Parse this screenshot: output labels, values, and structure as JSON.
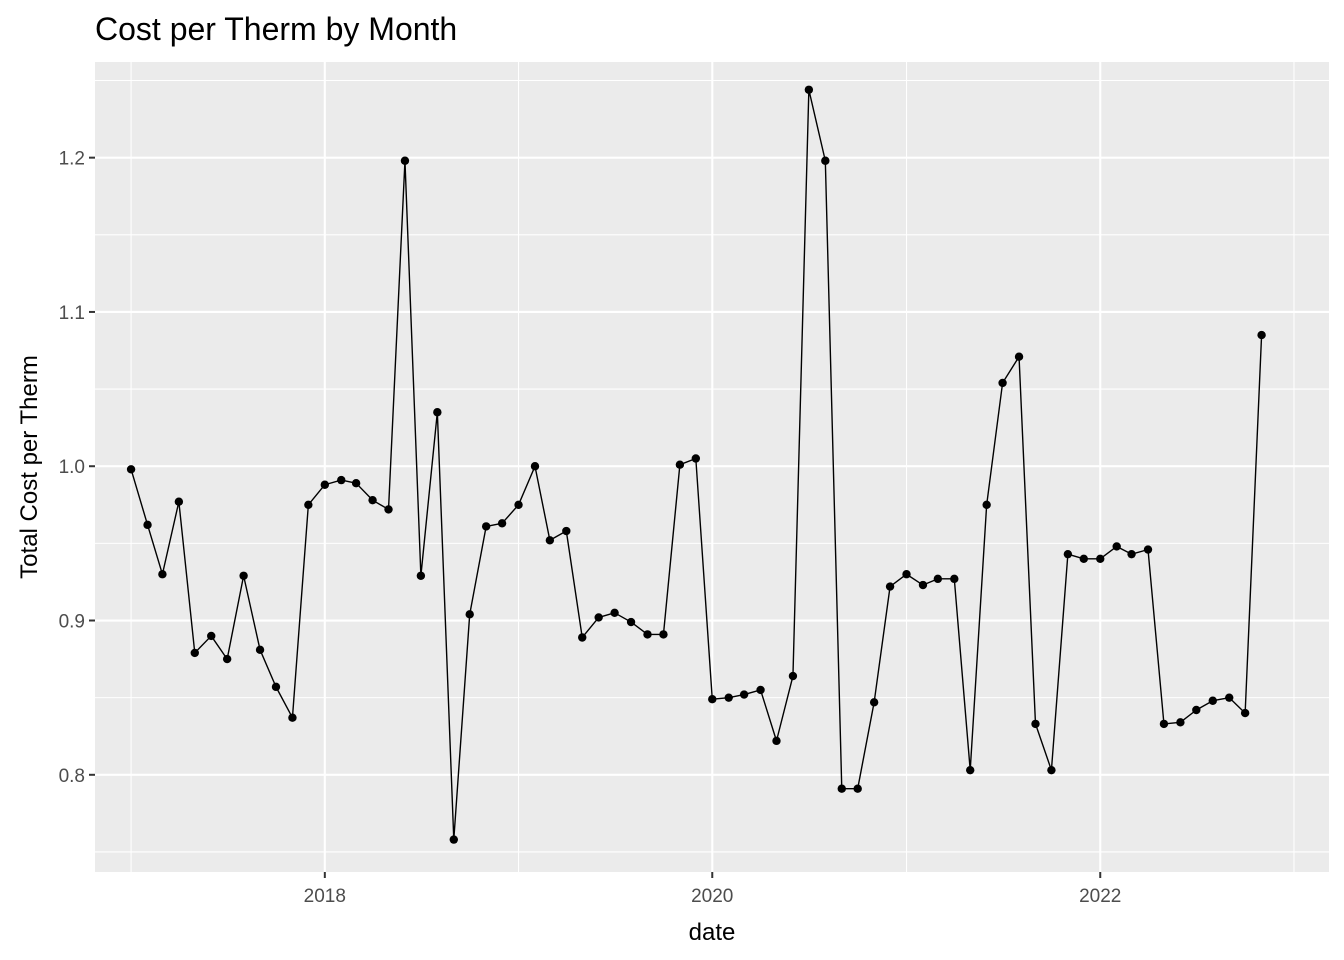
{
  "chart_data": {
    "type": "line",
    "title": "Cost per Therm by Month",
    "xlabel": "date",
    "ylabel": "Total Cost per Therm",
    "x_ticks": [
      {
        "label": "2018",
        "value": "2018-01-01"
      },
      {
        "label": "2020",
        "value": "2020-01-01"
      },
      {
        "label": "2022",
        "value": "2022-01-01"
      }
    ],
    "y_ticks": [
      "0.8",
      "0.9",
      "1.0",
      "1.1",
      "1.2"
    ],
    "xlim": [
      "2016-10-25",
      "2023-03-08"
    ],
    "ylim": [
      0.737,
      1.262
    ],
    "grid": true,
    "markers": true,
    "background_color": "#ebebeb",
    "grid_color": "#ffffff",
    "line_color": "#000000",
    "series": [
      {
        "x": [
          "2017-01-01",
          "2017-02-01",
          "2017-03-01",
          "2017-04-01",
          "2017-05-01",
          "2017-06-01",
          "2017-07-01",
          "2017-08-01",
          "2017-09-01",
          "2017-10-01",
          "2017-11-01",
          "2017-12-01",
          "2018-01-01",
          "2018-02-01",
          "2018-03-01",
          "2018-04-01",
          "2018-05-01",
          "2018-06-01",
          "2018-07-01",
          "2018-08-01",
          "2018-09-01",
          "2018-10-01",
          "2018-11-01",
          "2018-12-01",
          "2019-01-01",
          "2019-02-01",
          "2019-03-01",
          "2019-04-01",
          "2019-05-01",
          "2019-06-01",
          "2019-07-01",
          "2019-08-01",
          "2019-09-01",
          "2019-10-01",
          "2019-11-01",
          "2019-12-01",
          "2020-01-01",
          "2020-02-01",
          "2020-03-01",
          "2020-04-01",
          "2020-05-01",
          "2020-06-01",
          "2020-07-01",
          "2020-08-01",
          "2020-09-01",
          "2020-10-01",
          "2020-11-01",
          "2020-12-01",
          "2021-01-01",
          "2021-02-01",
          "2021-03-01",
          "2021-04-01",
          "2021-05-01",
          "2021-06-01",
          "2021-07-01",
          "2021-08-01",
          "2021-09-01",
          "2021-10-01",
          "2021-11-01",
          "2021-12-01",
          "2022-01-01",
          "2022-02-01",
          "2022-03-01",
          "2022-04-01",
          "2022-05-01",
          "2022-06-01",
          "2022-07-01",
          "2022-08-01",
          "2022-09-01",
          "2022-10-01",
          "2022-11-01",
          "2022-12-01"
        ],
        "y": [
          0.998,
          0.962,
          0.93,
          0.977,
          0.879,
          0.89,
          0.875,
          0.929,
          0.881,
          0.857,
          0.837,
          0.975,
          0.988,
          0.991,
          0.989,
          0.978,
          0.972,
          1.198,
          0.929,
          1.035,
          0.758,
          0.904,
          0.961,
          0.963,
          0.975,
          1.0,
          0.952,
          0.958,
          0.889,
          0.902,
          0.905,
          0.899,
          0.891,
          0.891,
          1.001,
          1.005,
          0.849,
          0.85,
          0.852,
          0.855,
          0.822,
          0.864,
          1.244,
          1.198,
          0.791,
          0.791,
          0.847,
          0.922,
          0.93,
          0.923,
          0.927,
          0.927,
          0.803,
          0.975,
          1.054,
          1.071,
          0.833,
          0.803,
          0.943,
          0.94,
          0.94,
          0.948,
          0.943,
          0.946,
          0.833,
          0.834,
          0.842,
          0.848,
          0.85,
          0.84,
          1.085,
          null
        ]
      }
    ]
  }
}
